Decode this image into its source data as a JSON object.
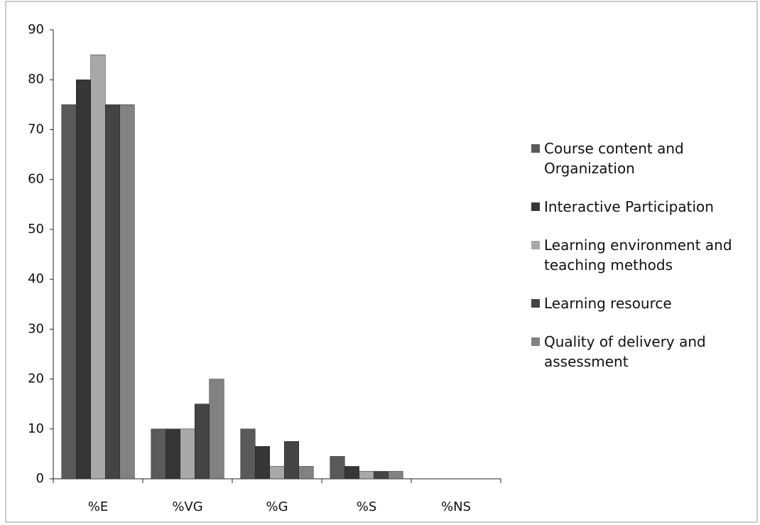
{
  "chart_data": {
    "type": "bar",
    "categories": [
      "%E",
      "%VG",
      "%G",
      "%S",
      "%NS"
    ],
    "series": [
      {
        "name": "Course content and Organization",
        "color": "#5a5a5a",
        "values": [
          75,
          10,
          10,
          4.5,
          0
        ]
      },
      {
        "name": "Interactive Participation",
        "color": "#363636",
        "values": [
          80,
          10,
          6.5,
          2.5,
          0
        ]
      },
      {
        "name": "Learning environment and teaching methods",
        "color": "#a8a8a8",
        "values": [
          85,
          10,
          2.5,
          1.5,
          0
        ]
      },
      {
        "name": "Learning resource",
        "color": "#444444",
        "values": [
          75,
          15,
          7.5,
          1.5,
          0
        ]
      },
      {
        "name": "Quality of delivery and assessment",
        "color": "#828282",
        "values": [
          75,
          20,
          2.5,
          1.5,
          0
        ]
      }
    ],
    "ylim": [
      0,
      90
    ],
    "yticks": [
      0,
      10,
      20,
      30,
      40,
      50,
      60,
      70,
      80,
      90
    ],
    "legend": "right"
  }
}
